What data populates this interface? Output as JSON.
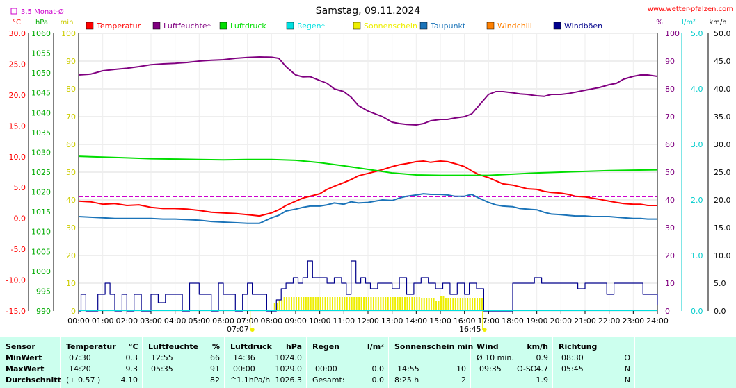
{
  "title": "Samstag, 09.11.2024",
  "site": "www.wetter-pfalzen.com",
  "top_left_note": "3.5 Monat-Ø",
  "units": {
    "temp": "°C",
    "press": "hPa",
    "min": "min",
    "pct": "%",
    "solar": "l/m²",
    "wind": "km/h"
  },
  "legend": [
    {
      "label": "Temperatur",
      "color": "#ff0000"
    },
    {
      "label": "Luftfeuchte*",
      "color": "#800080"
    },
    {
      "label": "Luftdruck",
      "color": "#00dd00"
    },
    {
      "label": "Regen*",
      "color": "#00e0e0"
    },
    {
      "label": "Sonnenschein",
      "color": "#eeee00"
    },
    {
      "label": "Taupunkt",
      "color": "#1a73b8"
    },
    {
      "label": "Windchill",
      "color": "#ff8000"
    },
    {
      "label": "Windböen",
      "color": "#00008b"
    }
  ],
  "chart_data": {
    "type": "line",
    "title": "Samstag, 09.11.2024",
    "x_unit": "hour of day",
    "x_ticks": [
      "00:00",
      "01:00",
      "02:00",
      "03:00",
      "04:00",
      "05:00",
      "06:00",
      "07:00",
      "08:00",
      "09:00",
      "10:00",
      "11:00",
      "12:00",
      "13:00",
      "14:00",
      "15:00",
      "16:00",
      "17:00",
      "18:00",
      "19:00",
      "20:00",
      "21:00",
      "22:00",
      "23:00",
      "24:00"
    ],
    "xlim": [
      0,
      24
    ],
    "axes": {
      "temp": {
        "unit": "°C",
        "ylim": [
          -15,
          30
        ],
        "ticks": [
          "30.0",
          "25.0",
          "20.0",
          "15.0",
          "10.0",
          "5.0",
          "0.0",
          "-5.0",
          "-10.0",
          "-15.0"
        ],
        "color": "#ff0000"
      },
      "pressure": {
        "unit": "hPa",
        "ylim": [
          990,
          1060
        ],
        "ticks": [
          "1060",
          "1055",
          "1050",
          "1045",
          "1040",
          "1035",
          "1030",
          "1025",
          "1020",
          "1015",
          "1010",
          "1005",
          "1000",
          "995",
          "990"
        ],
        "color": "#00aa00"
      },
      "minutes": {
        "unit": "min",
        "ylim": [
          0,
          100
        ],
        "ticks": [
          "100",
          "90",
          "80",
          "70",
          "60",
          "50",
          "40",
          "30",
          "20",
          "10",
          "0"
        ],
        "color": "#cccc00"
      },
      "humidity": {
        "unit": "%",
        "ylim": [
          0,
          100
        ],
        "ticks": [
          "100",
          "90",
          "80",
          "70",
          "60",
          "50",
          "40",
          "30",
          "20",
          "10",
          "0"
        ],
        "color": "#800080"
      },
      "rain": {
        "unit": "l/m²",
        "ylim": [
          0,
          5
        ],
        "ticks": [
          "5.0",
          "4.0",
          "3.0",
          "2.0",
          "1.0",
          "0.0"
        ],
        "color": "#00cccc"
      },
      "wind": {
        "unit": "km/h",
        "ylim": [
          0,
          50
        ],
        "ticks": [
          "50.0",
          "45.0",
          "40.0",
          "35.0",
          "30.0",
          "25.0",
          "20.0",
          "15.0",
          "10.0",
          "5.0",
          "0.0"
        ],
        "color": "#000000"
      }
    },
    "reference_line": {
      "name": "3.5 Monat-Ø",
      "axis": "temp",
      "value": 3.5
    },
    "markers": [
      {
        "label": "07:07",
        "hour": 7.117
      },
      {
        "label": "16:45",
        "hour": 16.75
      }
    ],
    "series": [
      {
        "name": "Luftfeuchte*",
        "axis": "humidity",
        "color": "#800080",
        "x": [
          0,
          0.5,
          1,
          1.5,
          2,
          2.5,
          3,
          3.5,
          4,
          4.5,
          5,
          5.5,
          6,
          6.5,
          7,
          7.5,
          8,
          8.3,
          8.6,
          9,
          9.3,
          9.6,
          10,
          10.3,
          10.6,
          11,
          11.3,
          11.6,
          12,
          12.3,
          12.6,
          13,
          13.3,
          13.6,
          14,
          14.3,
          14.6,
          15,
          15.3,
          15.6,
          16,
          16.3,
          16.6,
          17,
          17.3,
          17.6,
          18,
          18.3,
          18.6,
          19,
          19.3,
          19.6,
          20,
          20.3,
          20.6,
          21,
          21.3,
          21.6,
          22,
          22.3,
          22.6,
          23,
          23.3,
          23.6,
          24
        ],
        "y": [
          85,
          85.3,
          86.5,
          87,
          87.4,
          88,
          88.7,
          89,
          89.2,
          89.5,
          90,
          90.3,
          90.5,
          91,
          91.3,
          91.5,
          91.4,
          91,
          88,
          85,
          84.3,
          84.4,
          83,
          82,
          80,
          79,
          77,
          74,
          72,
          71,
          70,
          68,
          67.5,
          67.2,
          67,
          67.5,
          68.5,
          69,
          69,
          69.5,
          70,
          71,
          74,
          78,
          79,
          79,
          78.6,
          78.2,
          78,
          77.5,
          77.3,
          78,
          78,
          78.3,
          78.8,
          79.5,
          80,
          80.5,
          81.5,
          82,
          83.5,
          84.5,
          85,
          85,
          84.5
        ]
      },
      {
        "name": "Temperatur",
        "axis": "temp",
        "color": "#ff0000",
        "x": [
          0,
          0.5,
          1,
          1.5,
          2,
          2.5,
          3,
          3.5,
          4,
          4.5,
          5,
          5.5,
          6,
          6.5,
          7,
          7.5,
          8,
          8.3,
          8.6,
          9,
          9.3,
          9.6,
          10,
          10.3,
          10.6,
          11,
          11.3,
          11.6,
          12,
          12.3,
          12.6,
          13,
          13.3,
          13.6,
          14,
          14.3,
          14.6,
          15,
          15.3,
          15.6,
          16,
          16.3,
          16.6,
          17,
          17.3,
          17.6,
          18,
          18.3,
          18.6,
          19,
          19.3,
          19.6,
          20,
          20.3,
          20.6,
          21,
          21.3,
          21.6,
          22,
          22.3,
          22.6,
          23,
          23.3,
          23.6,
          24
        ],
        "y": [
          2.8,
          2.7,
          2.3,
          2.4,
          2.1,
          2.2,
          1.8,
          1.6,
          1.6,
          1.5,
          1.3,
          1.0,
          0.9,
          0.8,
          0.6,
          0.4,
          0.9,
          1.4,
          2.1,
          2.8,
          3.3,
          3.6,
          4.0,
          4.7,
          5.2,
          5.8,
          6.3,
          6.9,
          7.3,
          7.6,
          7.9,
          8.4,
          8.7,
          8.9,
          9.2,
          9.3,
          9.1,
          9.3,
          9.2,
          8.9,
          8.4,
          7.7,
          7.1,
          6.6,
          6.1,
          5.6,
          5.4,
          5.1,
          4.8,
          4.7,
          4.4,
          4.2,
          4.1,
          3.9,
          3.6,
          3.5,
          3.3,
          3.1,
          2.8,
          2.6,
          2.4,
          2.3,
          2.3,
          2.1,
          2.1
        ]
      },
      {
        "name": "Luftdruck",
        "axis": "pressure",
        "color": "#00dd00",
        "x": [
          0,
          1,
          2,
          3,
          4,
          5,
          6,
          7,
          8,
          9,
          10,
          11,
          12,
          13,
          14,
          15,
          16,
          17,
          18,
          19,
          20,
          21,
          22,
          23,
          24
        ],
        "y": [
          1029,
          1028.8,
          1028.6,
          1028.4,
          1028.3,
          1028.2,
          1028.1,
          1028.2,
          1028.2,
          1028,
          1027.4,
          1026.6,
          1025.7,
          1024.8,
          1024.3,
          1024.2,
          1024.2,
          1024.2,
          1024.5,
          1024.8,
          1025,
          1025.2,
          1025.4,
          1025.5,
          1025.6
        ]
      },
      {
        "name": "Taupunkt",
        "axis": "temp",
        "color": "#1a73b8",
        "x": [
          0,
          0.5,
          1,
          1.5,
          2,
          2.5,
          3,
          3.5,
          4,
          4.5,
          5,
          5.5,
          6,
          6.5,
          7,
          7.5,
          8,
          8.3,
          8.6,
          9,
          9.3,
          9.6,
          10,
          10.3,
          10.6,
          11,
          11.3,
          11.6,
          12,
          12.3,
          12.6,
          13,
          13.3,
          13.6,
          14,
          14.3,
          14.6,
          15,
          15.3,
          15.6,
          16,
          16.3,
          16.6,
          17,
          17.3,
          17.6,
          18,
          18.3,
          18.6,
          19,
          19.3,
          19.6,
          20,
          20.3,
          20.6,
          21,
          21.3,
          21.6,
          22,
          22.3,
          22.6,
          23,
          23.3,
          23.6,
          24
        ],
        "y": [
          0.3,
          0.2,
          0.1,
          0.0,
          0.0,
          0.0,
          0.0,
          -0.1,
          -0.1,
          -0.2,
          -0.3,
          -0.5,
          -0.6,
          -0.7,
          -0.8,
          -0.8,
          0.1,
          0.5,
          1.2,
          1.5,
          1.8,
          2.0,
          2.0,
          2.2,
          2.5,
          2.3,
          2.7,
          2.5,
          2.6,
          2.8,
          3.0,
          2.9,
          3.3,
          3.6,
          3.8,
          4.0,
          3.9,
          3.9,
          3.8,
          3.6,
          3.6,
          3.9,
          3.3,
          2.6,
          2.2,
          2.0,
          1.9,
          1.6,
          1.5,
          1.4,
          1.0,
          0.7,
          0.6,
          0.5,
          0.4,
          0.4,
          0.3,
          0.3,
          0.3,
          0.2,
          0.1,
          0.0,
          0.0,
          -0.1,
          -0.1
        ]
      },
      {
        "name": "Windböen",
        "axis": "wind",
        "color": "#00008b",
        "x": [
          0,
          0.1,
          0.3,
          0.5,
          0.8,
          1,
          1.1,
          1.3,
          1.5,
          1.8,
          2,
          2.3,
          2.6,
          3,
          3.3,
          3.6,
          4,
          4.3,
          4.6,
          5,
          5.2,
          5.5,
          5.8,
          6,
          6.2,
          6.5,
          6.8,
          7,
          7.2,
          7.5,
          7.8,
          8,
          8.2,
          8.4,
          8.6,
          8.9,
          9.1,
          9.3,
          9.5,
          9.7,
          10,
          10.3,
          10.6,
          10.9,
          11.1,
          11.3,
          11.5,
          11.7,
          11.9,
          12.1,
          12.4,
          12.7,
          13,
          13.3,
          13.6,
          13.9,
          14.2,
          14.5,
          14.8,
          15.1,
          15.4,
          15.7,
          16,
          16.2,
          16.5,
          16.8,
          17.2,
          17.5,
          17.8,
          18,
          18.3,
          18.6,
          18.9,
          19.2,
          19.5,
          19.8,
          20.1,
          20.4,
          20.7,
          21,
          21.3,
          21.6,
          21.9,
          22.2,
          22.5,
          22.8,
          23.1,
          23.4,
          23.7,
          23.85,
          24
        ],
        "y": [
          0,
          3,
          0,
          0,
          3,
          3,
          5,
          3,
          0,
          3,
          0,
          3,
          0,
          3,
          1.5,
          3,
          3,
          0,
          5,
          3,
          3,
          0,
          5,
          3,
          3,
          0,
          3,
          5,
          3,
          3,
          0,
          0,
          2,
          4,
          5,
          6,
          5,
          6,
          9,
          6,
          6,
          5,
          6,
          5,
          3,
          9,
          5,
          6,
          5,
          4,
          5,
          5,
          4,
          6,
          3,
          5,
          6,
          5,
          4,
          5,
          3,
          5,
          3,
          5,
          4,
          0,
          0,
          0,
          0,
          5,
          5,
          5,
          6,
          5,
          5,
          5,
          5,
          5,
          4,
          5,
          5,
          5,
          3,
          5,
          5,
          5,
          5,
          3,
          3,
          3,
          1
        ]
      }
    ],
    "sunshine": {
      "name": "Sonnenschein",
      "axis": "minutes",
      "color": "#eeee00",
      "bin_hours": 0.1,
      "intervals": [
        [
          8.1,
          8.3,
          3
        ],
        [
          8.3,
          8.5,
          4
        ],
        [
          8.5,
          14.2,
          5
        ],
        [
          14.2,
          14.8,
          4.5
        ],
        [
          14.8,
          15.0,
          3.5
        ],
        [
          15.0,
          15.2,
          5.5
        ],
        [
          15.2,
          16.8,
          4.5
        ]
      ]
    }
  },
  "stats": {
    "sensor": {
      "header": "Sensor",
      "rows": [
        "MinWert",
        "MaxWert",
        "Durchschnitt"
      ]
    },
    "temperature": {
      "header": "Temperatur",
      "unit": "°C",
      "rows": [
        [
          "07:30",
          "0.3"
        ],
        [
          "14:20",
          "9.3"
        ],
        [
          "(+ 0.57 )",
          "4.10"
        ]
      ]
    },
    "humidity": {
      "header": "Luftfeuchte",
      "unit": "%",
      "rows": [
        [
          "12:55",
          "66"
        ],
        [
          "05:35",
          "91"
        ],
        [
          "",
          "82"
        ]
      ]
    },
    "pressure": {
      "header": "Luftdruck",
      "unit": "hPa",
      "rows": [
        [
          "14:36",
          "1024.0"
        ],
        [
          "00:00",
          "1029.0"
        ],
        [
          "^1.1hPa/h",
          "1026.3"
        ]
      ]
    },
    "rain": {
      "header": "Regen",
      "unit": "l/m²",
      "rows": [
        [
          "",
          ""
        ],
        [
          "00:00",
          "0.0"
        ],
        [
          "Gesamt:",
          "0.0"
        ]
      ]
    },
    "sun": {
      "header": "Sonnenschein min",
      "rows": [
        [
          "",
          ""
        ],
        [
          "14:55",
          "10"
        ],
        [
          "8:25 h",
          "2"
        ]
      ]
    },
    "wind": {
      "header": "Wind",
      "unit": "km/h",
      "rows": [
        [
          "Ø 10 min.",
          "",
          "0.9"
        ],
        [
          "09:35",
          "O-SO",
          "4.7"
        ],
        [
          "",
          "",
          "1.9"
        ]
      ]
    },
    "direction": {
      "header": "Richtung",
      "rows": [
        [
          "08:30",
          "O"
        ],
        [
          "05:45",
          "N"
        ],
        [
          "",
          "N"
        ]
      ]
    }
  }
}
